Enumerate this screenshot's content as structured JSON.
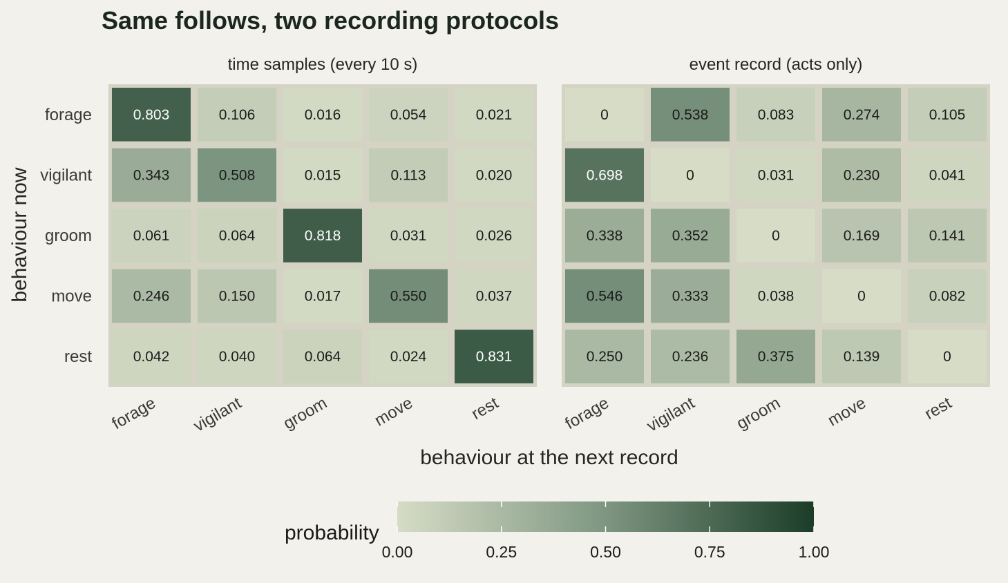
{
  "chart_data": {
    "type": "heatmap",
    "title": "Same follows, two recording protocols",
    "xlabel": "behaviour at the next record",
    "ylabel": "behaviour now",
    "rows": [
      "forage",
      "vigilant",
      "groom",
      "move",
      "rest"
    ],
    "columns": [
      "forage",
      "vigilant",
      "groom",
      "move",
      "rest"
    ],
    "panels": [
      {
        "name": "time samples (every 10 s)",
        "values": [
          [
            0.803,
            0.106,
            0.016,
            0.054,
            0.021
          ],
          [
            0.343,
            0.508,
            0.015,
            0.113,
            0.02
          ],
          [
            0.061,
            0.064,
            0.818,
            0.031,
            0.026
          ],
          [
            0.246,
            0.15,
            0.017,
            0.55,
            0.037
          ],
          [
            0.042,
            0.04,
            0.064,
            0.024,
            0.831
          ]
        ],
        "labels": [
          [
            "0.803",
            "0.106",
            "0.016",
            "0.054",
            "0.021"
          ],
          [
            "0.343",
            "0.508",
            "0.015",
            "0.113",
            "0.020"
          ],
          [
            "0.061",
            "0.064",
            "0.818",
            "0.031",
            "0.026"
          ],
          [
            "0.246",
            "0.150",
            "0.017",
            "0.550",
            "0.037"
          ],
          [
            "0.042",
            "0.040",
            "0.064",
            "0.024",
            "0.831"
          ]
        ]
      },
      {
        "name": "event record (acts only)",
        "values": [
          [
            0,
            0.538,
            0.083,
            0.274,
            0.105
          ],
          [
            0.698,
            0,
            0.031,
            0.23,
            0.041
          ],
          [
            0.338,
            0.352,
            0,
            0.169,
            0.141
          ],
          [
            0.546,
            0.333,
            0.038,
            0,
            0.082
          ],
          [
            0.25,
            0.236,
            0.375,
            0.139,
            0
          ]
        ],
        "labels": [
          [
            "0",
            "0.538",
            "0.083",
            "0.274",
            "0.105"
          ],
          [
            "0.698",
            "0",
            "0.031",
            "0.230",
            "0.041"
          ],
          [
            "0.338",
            "0.352",
            "0",
            "0.169",
            "0.141"
          ],
          [
            "0.546",
            "0.333",
            "0.038",
            "0",
            "0.082"
          ],
          [
            "0.250",
            "0.236",
            "0.375",
            "0.139",
            "0"
          ]
        ]
      }
    ],
    "legend": {
      "title": "probability",
      "placement": "bottom",
      "range": [
        0,
        1
      ],
      "ticks": [
        0,
        0.25,
        0.5,
        0.75,
        1
      ],
      "tick_labels": [
        "0.00",
        "0.25",
        "0.50",
        "0.75",
        "1.00"
      ]
    },
    "colors": {
      "low": "#d6dcc6",
      "high": "#1b3d28",
      "background": "#f2f1eb",
      "panel_border": "#d4d3c4",
      "label_dark": "#1a1a1a",
      "label_light": "#ffffff"
    }
  }
}
